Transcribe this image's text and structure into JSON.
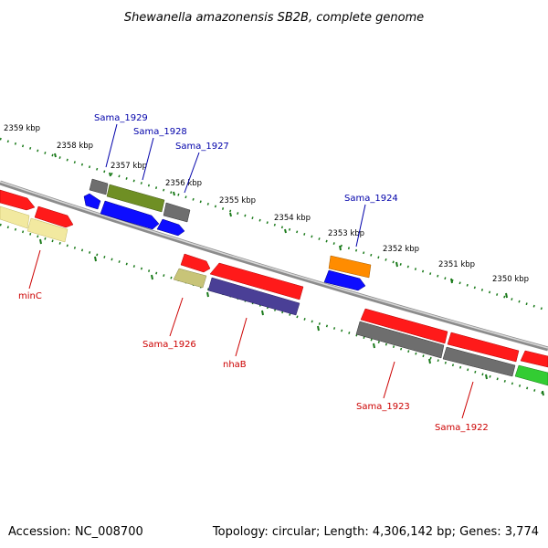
{
  "title": "Shewanella amazonensis SB2B, complete genome",
  "footer": {
    "accession": "Accession: NC_008700",
    "stats": "Topology: circular; Length: 4,306,142 bp; Genes: 3,774"
  },
  "scale_labels": [
    "2359 kbp",
    "2358 kbp",
    "2357 kbp",
    "2356 kbp",
    "2355 kbp",
    "2354 kbp",
    "2353 kbp",
    "2352 kbp",
    "2351 kbp",
    "2350 kbp"
  ],
  "genes_top": [
    {
      "name": "Sama_1929",
      "color": "#0000aa"
    },
    {
      "name": "Sama_1928",
      "color": "#0000aa"
    },
    {
      "name": "Sama_1927",
      "color": "#0000aa"
    },
    {
      "name": "Sama_1924",
      "color": "#0000aa"
    }
  ],
  "genes_bottom": [
    {
      "name": "minC",
      "color": "#cc0000"
    },
    {
      "name": "Sama_1926",
      "color": "#cc0000"
    },
    {
      "name": "nhaB",
      "color": "#cc0000"
    },
    {
      "name": "Sama_1923",
      "color": "#cc0000"
    },
    {
      "name": "Sama_1922",
      "color": "#cc0000"
    }
  ],
  "colors": {
    "backbone": "#7f7f7f",
    "scale_ticks": "#1a7a1a",
    "red": "#ff1a1a",
    "gray": "#6e6e6e",
    "olive": "#6f8f24",
    "blue": "#0d0dff",
    "khaki": "#c8c478",
    "pale_yellow": "#f2e9a0",
    "navy_purple": "#4a3f96",
    "orange": "#ff8c00",
    "green": "#33cc33"
  }
}
